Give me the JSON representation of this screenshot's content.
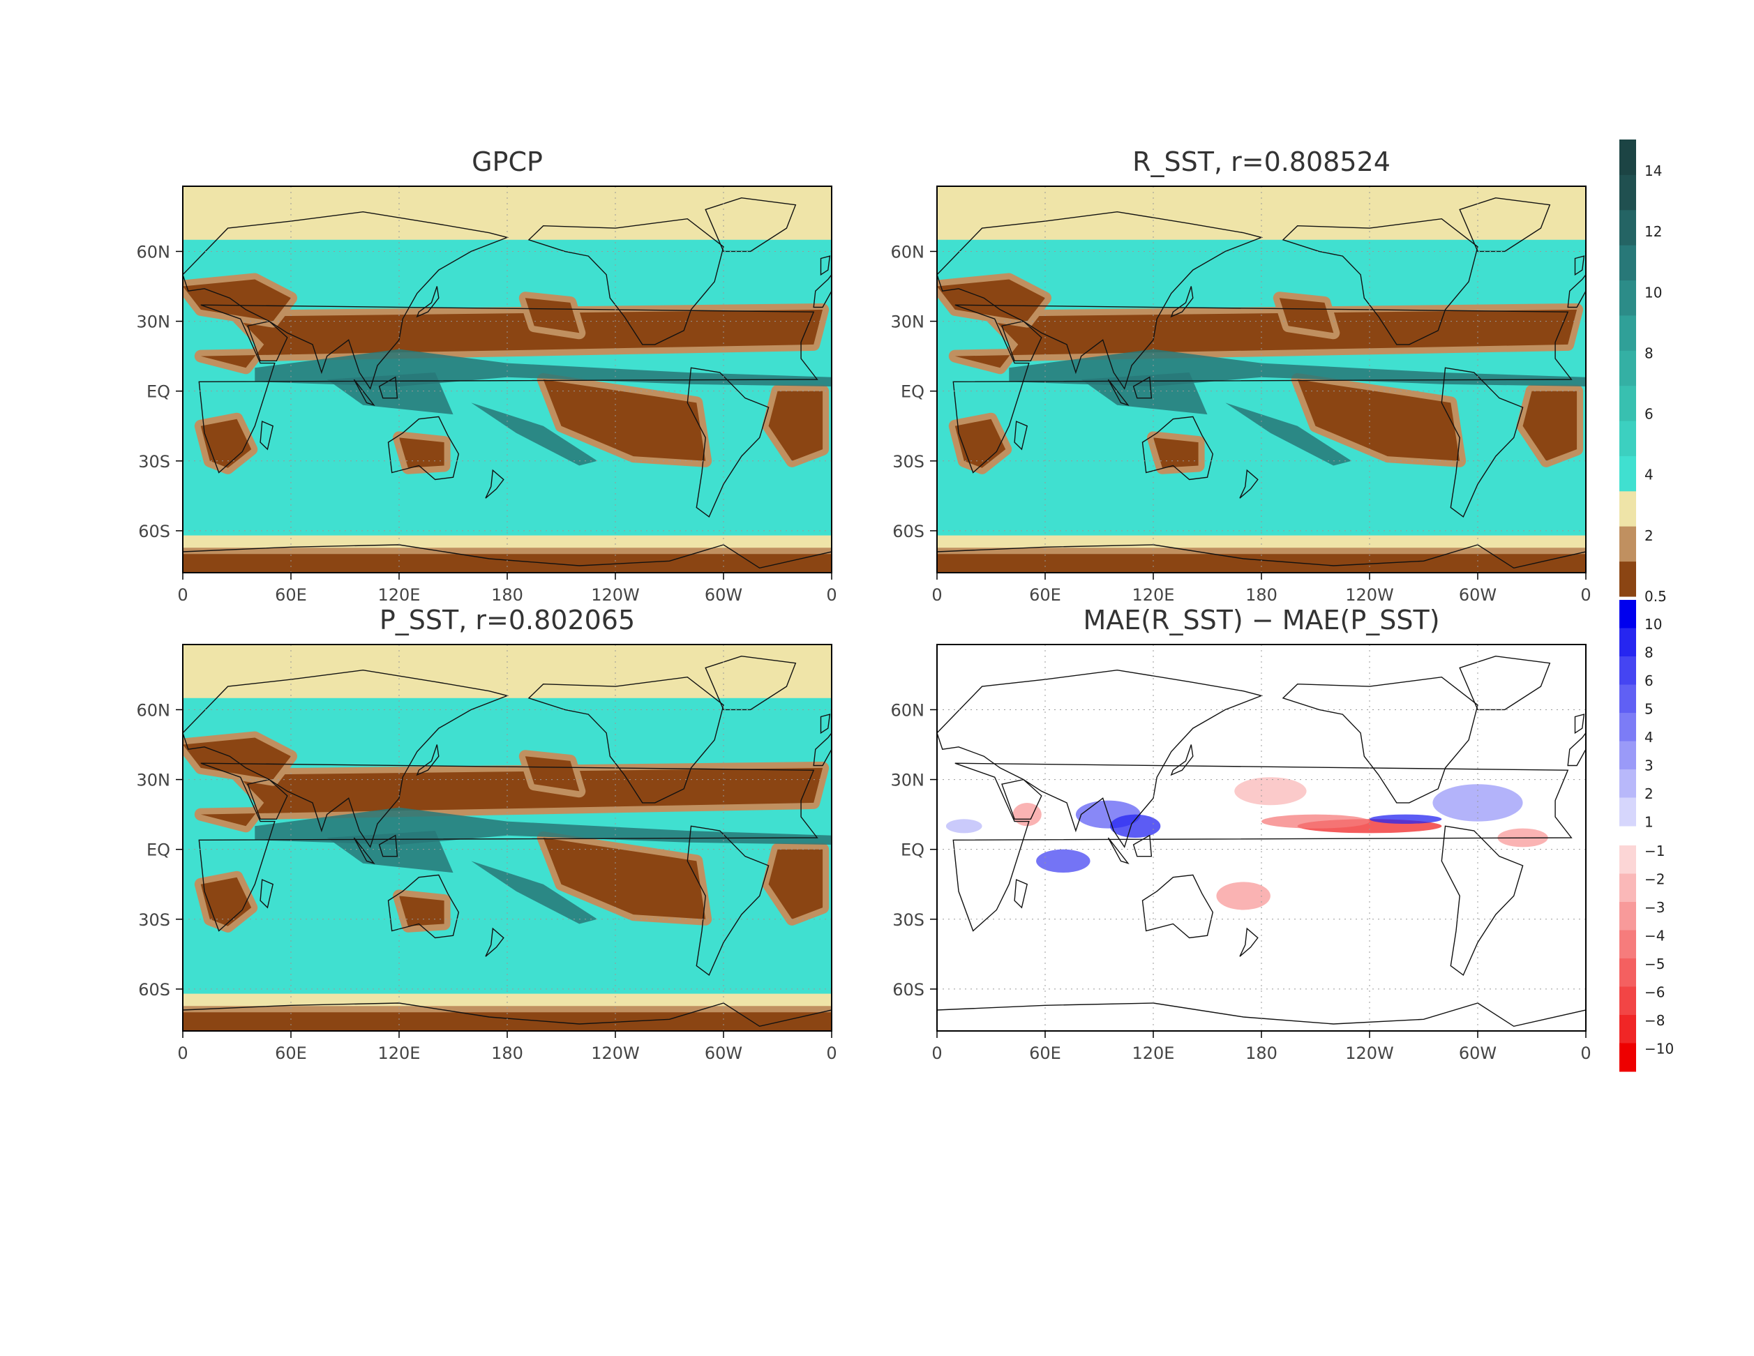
{
  "panels": [
    {
      "id": "gpcp",
      "title": "GPCP",
      "type": "precip"
    },
    {
      "id": "rsst",
      "title": "R_SST, r=0.808524",
      "type": "precip"
    },
    {
      "id": "psst",
      "title": "P_SST, r=0.802065",
      "type": "precip"
    },
    {
      "id": "mae",
      "title": "MAE(R_SST) − MAE(P_SST)",
      "type": "diff"
    }
  ],
  "axes": {
    "lon_ticks": [
      "0",
      "60E",
      "120E",
      "180",
      "120W",
      "60W",
      "0"
    ],
    "lat_ticks": [
      "60N",
      "30N",
      "EQ",
      "30S",
      "60S"
    ]
  },
  "colorbar_precip": {
    "ticks": [
      "14",
      "12",
      "10",
      "8",
      "6",
      "4",
      "2",
      "0.5"
    ],
    "colors": [
      "#8b4513",
      "#c09060",
      "#efe4a8",
      "#40e0d0",
      "#3cd0c0",
      "#38c0b0",
      "#34b0a4",
      "#30a098",
      "#2c8c88",
      "#287878",
      "#246464",
      "#205050",
      "#1c4444"
    ]
  },
  "colorbar_diff": {
    "ticks": [
      "10",
      "8",
      "6",
      "5",
      "4",
      "3",
      "2",
      "1",
      "−1",
      "−2",
      "−3",
      "−4",
      "−5",
      "−6",
      "−8",
      "−10"
    ],
    "pos_colors": [
      "#0000ee",
      "#2626f0",
      "#4545f2",
      "#6060f4",
      "#7c7cf6",
      "#9a9af8",
      "#b8b8fa",
      "#d6d6fc"
    ],
    "neg_colors": [
      "#fcd6d6",
      "#fab8b8",
      "#f89a9a",
      "#f67c7c",
      "#f46060",
      "#f24545",
      "#f02626",
      "#ee0000"
    ]
  }
}
